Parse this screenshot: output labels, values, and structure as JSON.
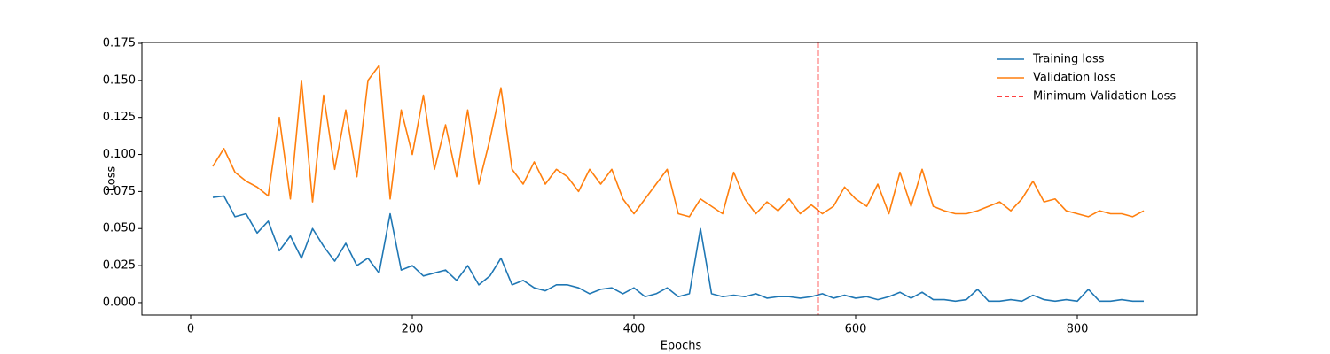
{
  "chart_data": {
    "type": "line",
    "xlabel": "Epochs",
    "ylabel": "Loss",
    "xlim": [
      -44,
      908
    ],
    "ylim": [
      -0.0084,
      0.1756
    ],
    "xticks": [
      0,
      200,
      400,
      600,
      800
    ],
    "yticks": [
      {
        "value": 0,
        "label": "0.000"
      },
      {
        "value": 0.025,
        "label": "0.025"
      },
      {
        "value": 0.05,
        "label": "0.050"
      },
      {
        "value": 0.075,
        "label": "0.075"
      },
      {
        "value": 0.1,
        "label": "0.100"
      },
      {
        "value": 0.125,
        "label": "0.125"
      },
      {
        "value": 0.15,
        "label": "0.150"
      },
      {
        "value": 0.175,
        "label": "0.175"
      }
    ],
    "legend": "upper right",
    "x": [
      20,
      30,
      40,
      50,
      60,
      70,
      80,
      90,
      100,
      110,
      120,
      130,
      140,
      150,
      160,
      170,
      180,
      190,
      200,
      210,
      220,
      230,
      240,
      250,
      260,
      270,
      280,
      290,
      300,
      310,
      320,
      330,
      340,
      350,
      360,
      370,
      380,
      390,
      400,
      410,
      420,
      430,
      440,
      450,
      460,
      470,
      480,
      490,
      500,
      510,
      520,
      530,
      540,
      550,
      560,
      570,
      580,
      590,
      600,
      610,
      620,
      630,
      640,
      650,
      660,
      670,
      680,
      690,
      700,
      710,
      720,
      730,
      740,
      750,
      760,
      770,
      780,
      790,
      800,
      810,
      820,
      830,
      840,
      850,
      860
    ],
    "series": [
      {
        "name": "Training loss",
        "color": "#1f77b4",
        "values": [
          0.071,
          0.072,
          0.058,
          0.06,
          0.047,
          0.055,
          0.035,
          0.045,
          0.03,
          0.05,
          0.038,
          0.028,
          0.04,
          0.025,
          0.03,
          0.02,
          0.06,
          0.022,
          0.025,
          0.018,
          0.02,
          0.022,
          0.015,
          0.025,
          0.012,
          0.018,
          0.03,
          0.012,
          0.015,
          0.01,
          0.008,
          0.012,
          0.012,
          0.01,
          0.006,
          0.009,
          0.01,
          0.006,
          0.01,
          0.004,
          0.006,
          0.01,
          0.004,
          0.006,
          0.05,
          0.006,
          0.004,
          0.005,
          0.004,
          0.006,
          0.003,
          0.004,
          0.004,
          0.003,
          0.004,
          0.006,
          0.003,
          0.005,
          0.003,
          0.004,
          0.002,
          0.004,
          0.007,
          0.003,
          0.007,
          0.002,
          0.002,
          0.001,
          0.002,
          0.009,
          0.001,
          0.001,
          0.002,
          0.001,
          0.005,
          0.002,
          0.001,
          0.002,
          0.001,
          0.009,
          0.001,
          0.001,
          0.002,
          0.001,
          0.001
        ]
      },
      {
        "name": "Validation loss",
        "color": "#ff7f0e",
        "values": [
          0.092,
          0.104,
          0.088,
          0.082,
          0.078,
          0.072,
          0.125,
          0.07,
          0.15,
          0.068,
          0.14,
          0.09,
          0.13,
          0.085,
          0.15,
          0.16,
          0.07,
          0.13,
          0.1,
          0.14,
          0.09,
          0.12,
          0.085,
          0.13,
          0.08,
          0.11,
          0.145,
          0.09,
          0.08,
          0.095,
          0.08,
          0.09,
          0.085,
          0.075,
          0.09,
          0.08,
          0.09,
          0.07,
          0.06,
          0.07,
          0.08,
          0.09,
          0.06,
          0.058,
          0.07,
          0.065,
          0.06,
          0.088,
          0.07,
          0.06,
          0.068,
          0.062,
          0.07,
          0.06,
          0.066,
          0.06,
          0.065,
          0.078,
          0.07,
          0.065,
          0.08,
          0.06,
          0.088,
          0.065,
          0.09,
          0.065,
          0.062,
          0.06,
          0.06,
          0.062,
          0.065,
          0.068,
          0.062,
          0.07,
          0.082,
          0.068,
          0.07,
          0.062,
          0.06,
          0.058,
          0.062,
          0.06,
          0.06,
          0.058,
          0.062
        ]
      }
    ],
    "vline": {
      "x": 566,
      "name": "Minimum Validation Loss",
      "color": "#ff0000",
      "dashed": true
    }
  }
}
